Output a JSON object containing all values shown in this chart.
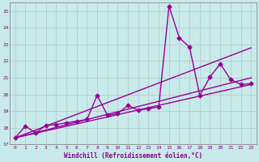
{
  "xlabel": "Windchill (Refroidissement éolien,°C)",
  "ylabel": "",
  "xlim": [
    -0.5,
    23.5
  ],
  "ylim": [
    17,
    25.5
  ],
  "xticks": [
    0,
    1,
    2,
    3,
    4,
    5,
    6,
    7,
    8,
    9,
    10,
    11,
    12,
    13,
    14,
    15,
    16,
    17,
    18,
    19,
    20,
    21,
    22,
    23
  ],
  "yticks": [
    17,
    18,
    19,
    20,
    21,
    22,
    23,
    24,
    25
  ],
  "background_color": "#c8eaea",
  "grid_color": "#b0c8c8",
  "line_color": "#990099",
  "lines": [
    {
      "x": [
        0,
        1,
        2,
        3,
        4,
        5,
        6,
        7,
        8,
        9,
        10,
        11,
        12,
        13,
        14,
        15,
        16,
        17,
        18,
        19,
        20,
        21,
        22,
        23
      ],
      "y": [
        17.4,
        18.1,
        17.7,
        18.15,
        18.2,
        18.3,
        18.4,
        18.5,
        19.95,
        18.75,
        18.85,
        19.35,
        19.05,
        19.15,
        19.25,
        25.3,
        23.4,
        22.85,
        19.95,
        21.05,
        21.85,
        20.9,
        20.6,
        20.65
      ],
      "marker": "D",
      "markersize": 2.5,
      "linewidth": 1.0
    },
    {
      "x": [
        0,
        23
      ],
      "y": [
        17.4,
        22.8
      ],
      "marker": null,
      "markersize": 0,
      "linewidth": 1.0
    },
    {
      "x": [
        0,
        23
      ],
      "y": [
        17.4,
        21.0
      ],
      "marker": null,
      "markersize": 0,
      "linewidth": 1.0
    },
    {
      "x": [
        0,
        23
      ],
      "y": [
        17.4,
        20.6
      ],
      "marker": null,
      "markersize": 0,
      "linewidth": 1.0
    }
  ]
}
